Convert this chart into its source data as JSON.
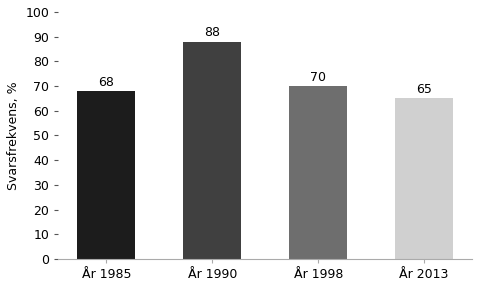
{
  "categories": [
    "År 1985",
    "År 1990",
    "År 1998",
    "År 2013"
  ],
  "values": [
    68,
    88,
    70,
    65
  ],
  "bar_colors": [
    "#1c1c1c",
    "#404040",
    "#6e6e6e",
    "#d0d0d0"
  ],
  "ylabel": "Svarsfrekvens, %",
  "ylim": [
    0,
    100
  ],
  "yticks": [
    0,
    10,
    20,
    30,
    40,
    50,
    60,
    70,
    80,
    90,
    100
  ],
  "bar_width": 0.55,
  "value_fontsize": 9,
  "label_fontsize": 9,
  "ylabel_fontsize": 9,
  "background_color": "#ffffff",
  "edge_color": "none",
  "tick_color": "#555555",
  "spine_color": "#aaaaaa"
}
